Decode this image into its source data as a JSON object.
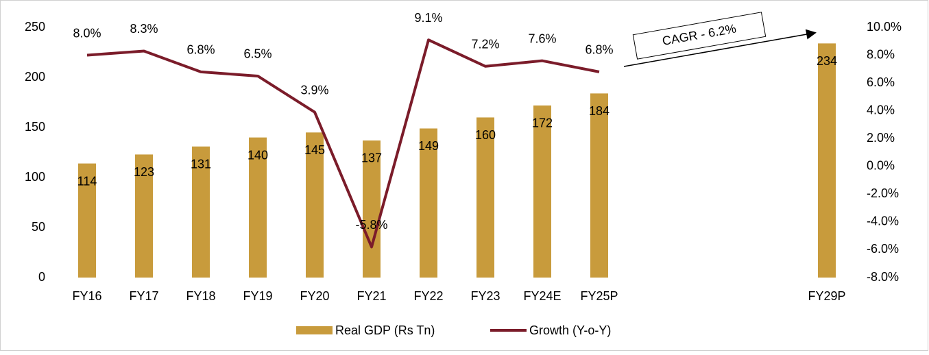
{
  "chart_data": {
    "type": "combo",
    "categories": [
      "FY16",
      "FY17",
      "FY18",
      "FY19",
      "FY20",
      "FY21",
      "FY22",
      "FY23",
      "FY24E",
      "FY25P",
      null,
      null,
      null,
      "FY29P"
    ],
    "series": [
      {
        "name": "Real GDP (Rs Tn)",
        "type": "bar",
        "color": "#c89b3c",
        "values": [
          114,
          123,
          131,
          140,
          145,
          137,
          149,
          160,
          172,
          184,
          null,
          null,
          null,
          234
        ]
      },
      {
        "name": "Growth (Y-o-Y)",
        "type": "line",
        "axis": "y2",
        "color": "#7b1c2a",
        "values": [
          8.0,
          8.3,
          6.8,
          6.5,
          3.9,
          -5.8,
          9.1,
          7.2,
          7.6,
          6.8,
          null,
          null,
          null,
          null
        ],
        "value_labels": [
          "8.0%",
          "8.3%",
          "6.8%",
          "6.5%",
          "3.9%",
          "-5.8%",
          "9.1%",
          "7.2%",
          "7.6%",
          "6.8%",
          null,
          null,
          null,
          null
        ]
      }
    ],
    "ylim": [
      0,
      250
    ],
    "yticks": [
      0,
      50,
      100,
      150,
      200,
      250
    ],
    "y2lim": [
      -8,
      10
    ],
    "y2ticks": [
      {
        "value": -8,
        "label": "-8.0%"
      },
      {
        "value": -6,
        "label": "-6.0%"
      },
      {
        "value": -4,
        "label": "-4.0%"
      },
      {
        "value": -2,
        "label": "-2.0%"
      },
      {
        "value": 0,
        "label": "0.0%"
      },
      {
        "value": 2,
        "label": "2.0%"
      },
      {
        "value": 4,
        "label": "4.0%"
      },
      {
        "value": 6,
        "label": "6.0%"
      },
      {
        "value": 8,
        "label": "8.0%"
      },
      {
        "value": 10,
        "label": "10.0%"
      }
    ],
    "grid": false,
    "legend": "bottom",
    "annotations": [
      {
        "text": "CAGR - 6.2%"
      }
    ]
  }
}
